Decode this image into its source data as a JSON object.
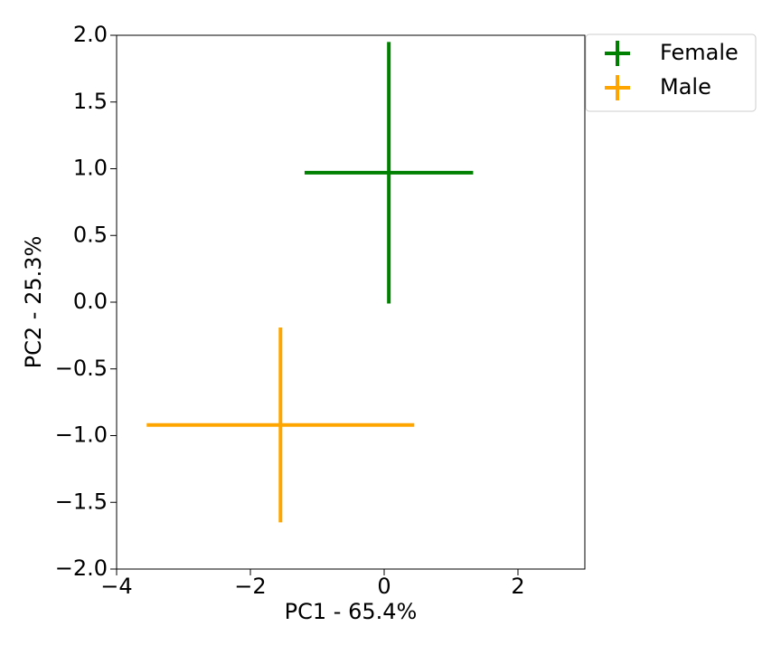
{
  "chart_data": {
    "type": "errorbar",
    "xlabel": "PC1 - 65.4%",
    "ylabel": "PC2 - 25.3%",
    "xlim": [
      -4,
      3
    ],
    "ylim": [
      -2,
      2
    ],
    "xticks": [
      {
        "value": -4,
        "label": "−4"
      },
      {
        "value": -2,
        "label": "−2"
      },
      0,
      2
    ],
    "yticks": [
      {
        "value": -2,
        "label": "−2.0"
      },
      {
        "value": -1.5,
        "label": "−1.5"
      },
      {
        "value": -1,
        "label": "−1.0"
      },
      {
        "value": -0.5,
        "label": "−0.5"
      },
      {
        "value": 0,
        "label": "0.0"
      },
      0.5,
      {
        "value": 1,
        "label": "1.0"
      },
      1.5,
      {
        "value": 2,
        "label": "2.0"
      }
    ],
    "legend": "outside-upper-right",
    "series": [
      {
        "name": "Female",
        "color": "#008000",
        "x": [
          0.07
        ],
        "y": [
          0.97
        ],
        "xerr": [
          1.26
        ],
        "yerr": [
          0.98
        ]
      },
      {
        "name": "Male",
        "color": "#ffa500",
        "x": [
          -1.55
        ],
        "y": [
          -0.92
        ],
        "xerr": [
          2.0
        ],
        "yerr": [
          0.73
        ]
      }
    ]
  }
}
